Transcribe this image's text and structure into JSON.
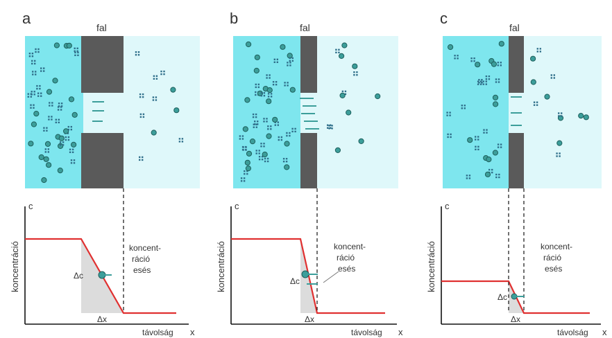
{
  "panels": [
    {
      "letter": "a",
      "wall_label": "fal",
      "y_axis_letter": "c",
      "y_axis_label": "koncentráció",
      "x_axis_label": "távolság",
      "x_axis_letter": "x",
      "gradient_label_lines": [
        "koncent-",
        "ráció",
        "esés"
      ],
      "dc_label": "Δc",
      "dx_label": "Δx"
    },
    {
      "letter": "b",
      "wall_label": "fal",
      "y_axis_letter": "c",
      "y_axis_label": "koncentráció",
      "x_axis_label": "távolság",
      "x_axis_letter": "x",
      "gradient_label_lines": [
        "koncent-",
        "ráció",
        "esés"
      ],
      "dc_label": "Δc",
      "dx_label": "Δx"
    },
    {
      "letter": "c",
      "wall_label": "fal",
      "y_axis_letter": "c",
      "y_axis_label": "koncentráció",
      "x_axis_label": "távolság",
      "x_axis_letter": "x",
      "gradient_label_lines": [
        "koncent-",
        "ráció",
        "esés"
      ],
      "dc_label": "Δc",
      "dx_label": "Δx"
    }
  ],
  "colors": {
    "high_concentration": "#7ee6ee",
    "low_concentration": "#dff8fa",
    "wall": "#5a5a5a",
    "particle": "#3c9e9a",
    "curve": "#e03030",
    "shaded_triangle": "#dcdcdc"
  }
}
